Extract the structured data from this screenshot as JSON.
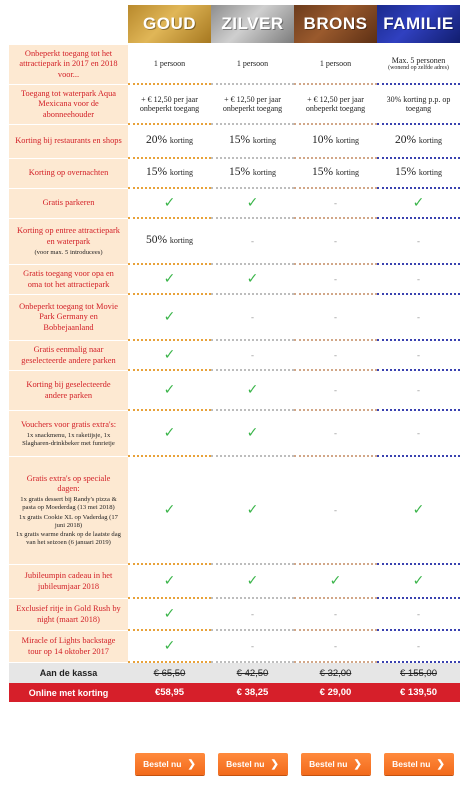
{
  "header": {
    "tiers": [
      {
        "name": "GOUD"
      },
      {
        "name": "ZILVER"
      },
      {
        "name": "BRONS"
      },
      {
        "name": "FAMILIE"
      }
    ]
  },
  "rows": [
    {
      "label": "Onbeperkt toegang tot het attractiepark in 2017 en 2018 voor...",
      "values": [
        "1 persoon",
        "1 persoon",
        "1 persoon",
        "Max. 5 personen"
      ],
      "familie_note": "(wonend op zelfde adres)"
    },
    {
      "label": "Toegang tot waterpark Aqua Mexicana voor de abonneehouder",
      "values": [
        "+ € 12,50 per jaar onbeperkt toegang",
        "+ € 12,50 per jaar onbeperkt toegang",
        "+ € 12,50 per jaar onbeperkt toegang",
        "30% korting p.p. op toegang"
      ]
    },
    {
      "label": "Korting bij restaurants en shops",
      "pct": [
        "20%",
        "15%",
        "10%",
        "20%"
      ],
      "suffix": "korting"
    },
    {
      "label": "Korting op overnachten",
      "pct": [
        "15%",
        "15%",
        "15%",
        "15%"
      ],
      "suffix": "korting"
    },
    {
      "label": "Gratis parkeren",
      "marks": [
        "check",
        "check",
        "dash",
        "check"
      ]
    },
    {
      "label": "Korting op entree attractiepark en waterpark",
      "sub": "(voor max. 5 introducees)",
      "pct0": "50%",
      "suffix": "korting",
      "marks": [
        "pct",
        "dash",
        "dash",
        "dash"
      ]
    },
    {
      "label": "Gratis toegang voor opa en oma tot het attractiepark",
      "marks": [
        "check",
        "check",
        "dash",
        "dash"
      ]
    },
    {
      "label": "Onbeperkt toegang tot Movie Park Germany en Bobbejaanland",
      "marks": [
        "check",
        "dash",
        "dash",
        "dash"
      ]
    },
    {
      "label": "Gratis eenmalig naar geselecteerde andere parken",
      "marks": [
        "check",
        "dash",
        "dash",
        "dash"
      ]
    },
    {
      "label": "Korting bij geselecteerde andere parken",
      "marks": [
        "check",
        "check",
        "dash",
        "dash"
      ]
    },
    {
      "label": "Vouchers voor gratis extra's:",
      "sub": "1x snackmenu, 1x raketijsje, 1x Slagharen-drinkbeker met funrietje",
      "marks": [
        "check",
        "check",
        "dash",
        "dash"
      ]
    },
    {
      "label": "Gratis extra's op speciale dagen:",
      "sub": "1x gratis dessert bij Randy's pizza & pasta op Moederdag (13 mei 2018)",
      "sub2": "1x gratis Cookie XL op Vaderdag (17 juni 2018)",
      "sub3": "1x gratis warme drank op de laatste dag van het seizoen (6 januari 2019)",
      "marks": [
        "check",
        "check",
        "dash",
        "check"
      ]
    },
    {
      "label": "Jubileumpin cadeau in het jubileumjaar 2018",
      "marks": [
        "check",
        "check",
        "check",
        "check"
      ]
    },
    {
      "label": "Exclusief ritje in Gold Rush by night (maart 2018)",
      "marks": [
        "check",
        "dash",
        "dash",
        "dash"
      ]
    },
    {
      "label": "Miracle of Lights backstage tour op 14 oktober 2017",
      "marks": [
        "check",
        "dash",
        "dash",
        "dash"
      ]
    }
  ],
  "symbols": {
    "check": "✓",
    "dash": "-"
  },
  "kassa": {
    "label": "Aan de kassa",
    "prices": [
      "€ 65,50",
      "€ 42,50",
      "€ 32,00",
      "€ 155,00"
    ]
  },
  "online": {
    "label": "Online met korting",
    "prices": [
      "€58,95",
      "€ 38,25",
      "€ 29,00",
      "€ 139,50"
    ]
  },
  "buttons": {
    "label": "Bestel nu",
    "arrow": "❯"
  },
  "colors": {
    "accent_red": "#d61f2a",
    "label_bg": "#fde9d2",
    "check_green": "#3bb54a",
    "button_orange": "#f26a1b"
  }
}
